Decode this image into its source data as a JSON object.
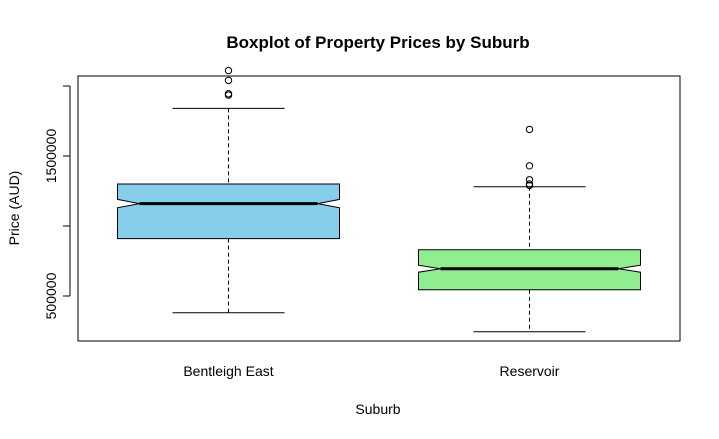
{
  "chart_data": {
    "type": "boxplot",
    "title": "Boxplot of Property Prices by Suburb",
    "xlabel": "Suburb",
    "ylabel": "Price (AUD)",
    "notched": true,
    "categories": [
      "Bentleigh East",
      "Reservoir"
    ],
    "y_ticks": [
      500000,
      1500000
    ],
    "y_tick_labels": [
      "500000",
      "1500000"
    ],
    "ylim": [
      250000,
      2000000
    ],
    "grid": false,
    "series": [
      {
        "category": "Bentleigh East",
        "color": "#87CEEB",
        "whisker_low": 380000,
        "q1": 910000,
        "median": 1160000,
        "q3": 1300000,
        "whisker_high": 1840000,
        "notch_low": 1130000,
        "notch_high": 1190000,
        "outliers": [
          1935000,
          1945000,
          2040000,
          2110000
        ]
      },
      {
        "category": "Reservoir",
        "color": "#90EE90",
        "whisker_low": 245000,
        "q1": 545000,
        "median": 695000,
        "q3": 830000,
        "whisker_high": 1280000,
        "notch_low": 670000,
        "notch_high": 720000,
        "outliers": [
          1290000,
          1300000,
          1330000,
          1430000,
          1690000
        ]
      }
    ]
  }
}
